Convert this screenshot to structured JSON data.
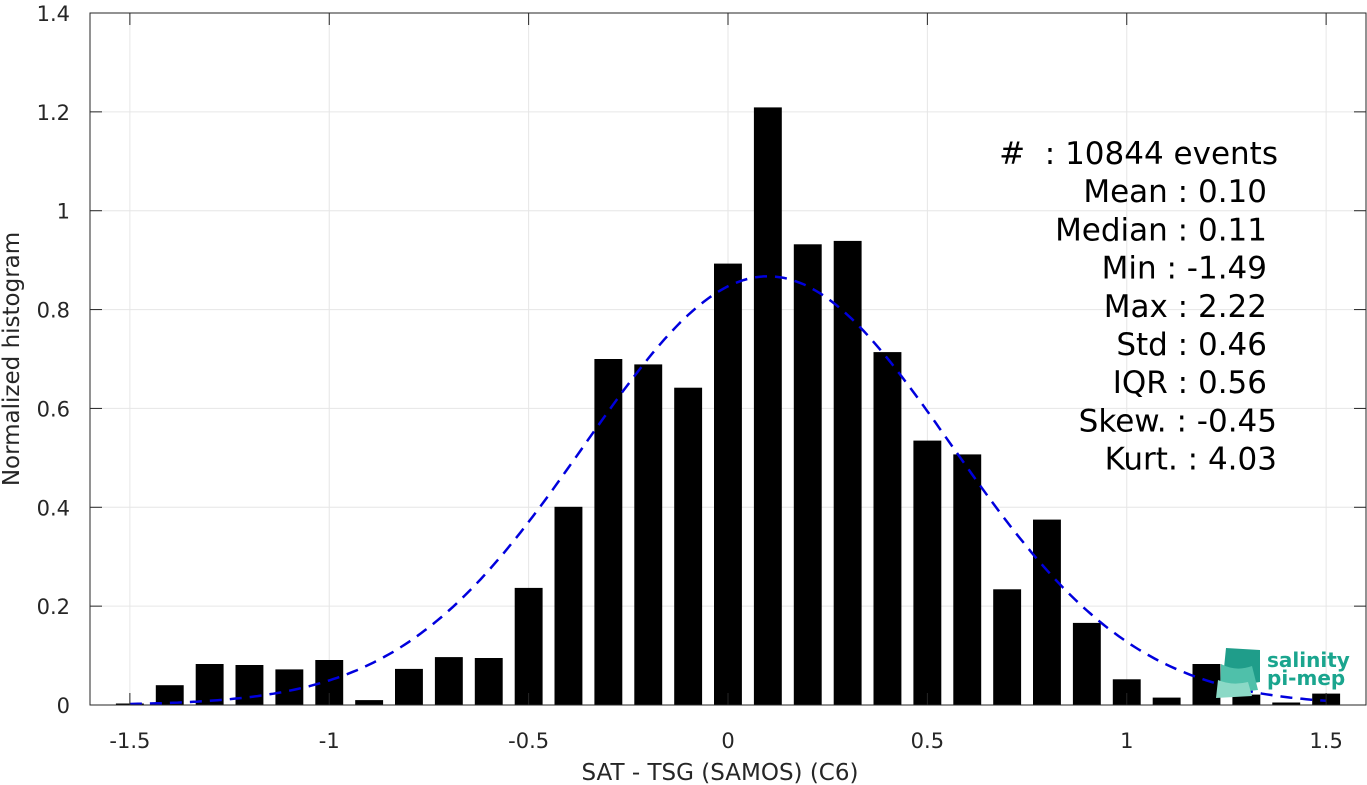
{
  "chart_data": {
    "type": "bar",
    "xlabel": "SAT - TSG (SAMOS) (C6)",
    "ylabel": "Normalized histogram",
    "xlim": [
      -1.6,
      1.6
    ],
    "ylim": [
      0,
      1.4
    ],
    "grid": true,
    "xticks": [
      -1.5,
      -1,
      -0.5,
      0,
      0.5,
      1,
      1.5
    ],
    "xtick_labels": [
      "-1.5",
      "-1",
      "-0.5",
      "0",
      "0.5",
      "1",
      "1.5"
    ],
    "yticks": [
      0,
      0.2,
      0.4,
      0.6,
      0.8,
      1,
      1.2,
      1.4
    ],
    "ytick_labels": [
      "0",
      "0.2",
      "0.4",
      "0.6",
      "0.8",
      "1",
      "1.2",
      "1.4"
    ],
    "bar_width": 0.07,
    "bars": {
      "x": [
        -1.5,
        -1.4,
        -1.3,
        -1.2,
        -1.1,
        -1.0,
        -0.9,
        -0.8,
        -0.7,
        -0.6,
        -0.5,
        -0.4,
        -0.3,
        -0.2,
        -0.1,
        0.0,
        0.1,
        0.2,
        0.3,
        0.4,
        0.5,
        0.6,
        0.7,
        0.8,
        0.9,
        1.0,
        1.1,
        1.2,
        1.3,
        1.4,
        1.5
      ],
      "values": [
        0.003,
        0.04,
        0.083,
        0.081,
        0.072,
        0.091,
        0.01,
        0.073,
        0.097,
        0.095,
        0.237,
        0.401,
        0.7,
        0.689,
        0.642,
        0.893,
        1.209,
        0.932,
        0.939,
        0.714,
        0.535,
        0.507,
        0.234,
        0.375,
        0.166,
        0.052,
        0.015,
        0.083,
        0.021,
        0.005,
        0.023
      ],
      "color": "#000000"
    },
    "fit_curve": {
      "style": "dashed",
      "color": "#0000dd",
      "mean": 0.1,
      "std": 0.46
    },
    "annotations": [
      "#  : 10844 events",
      "Mean : 0.10",
      "Median : 0.11",
      "Min : -1.49",
      "Max : 2.22",
      "Std : 0.46",
      "IQR : 0.56",
      "Skew. : -0.45",
      "Kurt. : 4.03"
    ]
  },
  "logo": {
    "line1": "salinity",
    "line2": "pi-mep",
    "color": "#1aa58e"
  }
}
